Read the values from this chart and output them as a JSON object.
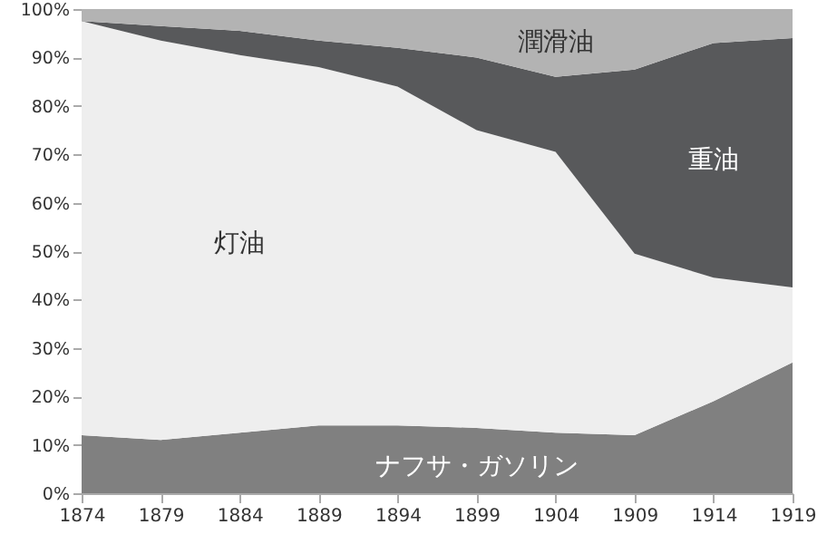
{
  "chart_data": {
    "type": "area",
    "stacked": true,
    "x": [
      1874,
      1879,
      1884,
      1889,
      1894,
      1899,
      1904,
      1909,
      1914,
      1919
    ],
    "series": [
      {
        "name": "ナフサ・ガソリン",
        "color": "#808080",
        "values": [
          12,
          11,
          12.5,
          14,
          14,
          13.5,
          12.5,
          12,
          19,
          27
        ]
      },
      {
        "name": "灯油",
        "color": "#eeeeee",
        "values": [
          85.5,
          82.5,
          78,
          74,
          70,
          61.5,
          58,
          37.5,
          25.5,
          15.5
        ]
      },
      {
        "name": "重油",
        "color": "#58595b",
        "values": [
          0,
          3,
          5,
          5.5,
          8,
          15,
          15.5,
          38,
          48.5,
          51.5
        ]
      },
      {
        "name": "潤滑油",
        "color": "#b3b3b3",
        "values": [
          2.5,
          3.5,
          4.5,
          6.5,
          8,
          10,
          14,
          12.5,
          7,
          6
        ]
      }
    ],
    "xlim": [
      1874,
      1919
    ],
    "xticks": [
      1874,
      1879,
      1884,
      1889,
      1894,
      1899,
      1904,
      1909,
      1914,
      1919
    ],
    "ylim": [
      0,
      100
    ],
    "yticks": [
      {
        "value": 0,
        "label": "0%"
      },
      {
        "value": 10,
        "label": "10%"
      },
      {
        "value": 20,
        "label": "20%"
      },
      {
        "value": 30,
        "label": "30%"
      },
      {
        "value": 40,
        "label": "40%"
      },
      {
        "value": 50,
        "label": "50%"
      },
      {
        "value": 60,
        "label": "60%"
      },
      {
        "value": 70,
        "label": "70%"
      },
      {
        "value": 80,
        "label": "80%"
      },
      {
        "value": 90,
        "label": "90%"
      },
      {
        "value": 100,
        "label": "100%"
      }
    ],
    "grid": false
  }
}
